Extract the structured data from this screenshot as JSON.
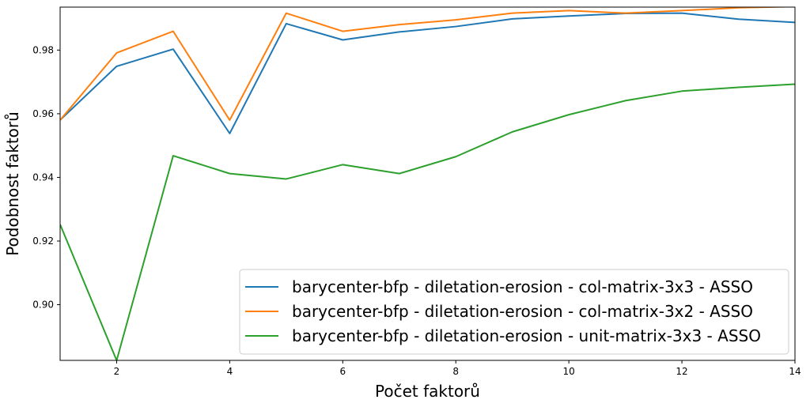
{
  "chart_data": {
    "type": "line",
    "xlabel": "Počet faktorů",
    "ylabel": "Podobnost faktorů",
    "xlim": [
      1,
      14
    ],
    "ylim": [
      0.8825,
      0.9935
    ],
    "xticks": [
      2,
      4,
      6,
      8,
      10,
      12,
      14
    ],
    "yticks": [
      0.9,
      0.92,
      0.94,
      0.96,
      0.98
    ],
    "ytick_labels": [
      "0.90",
      "0.92",
      "0.94",
      "0.96",
      "0.98"
    ],
    "grid": false,
    "legend_position": "bottom-right",
    "x": [
      1,
      2,
      3,
      4,
      5,
      6,
      7,
      8,
      9,
      10,
      11,
      12,
      13,
      14
    ],
    "series": [
      {
        "name": "barycenter-bfp - diletation-erosion - col-matrix-3x3 - ASSO",
        "color": "#1f77b4",
        "values": [
          0.958,
          0.9749,
          0.9803,
          0.9538,
          0.9883,
          0.9832,
          0.9857,
          0.9874,
          0.9898,
          0.9907,
          0.9915,
          0.9916,
          0.9897,
          0.9887
        ]
      },
      {
        "name": "barycenter-bfp - diletation-erosion - col-matrix-3x2 - ASSO",
        "color": "#ff7f0e",
        "values": [
          0.958,
          0.9791,
          0.9859,
          0.958,
          0.9916,
          0.9859,
          0.988,
          0.9895,
          0.9916,
          0.9924,
          0.9916,
          0.9924,
          0.9933,
          0.9937
        ]
      },
      {
        "name": "barycenter-bfp - diletation-erosion - unit-matrix-3x3 - ASSO",
        "color": "#2ca02c",
        "values": [
          0.9252,
          0.8825,
          0.9468,
          0.9412,
          0.9395,
          0.944,
          0.9412,
          0.9465,
          0.9543,
          0.9597,
          0.9641,
          0.9671,
          0.9683,
          0.9693
        ]
      }
    ]
  }
}
